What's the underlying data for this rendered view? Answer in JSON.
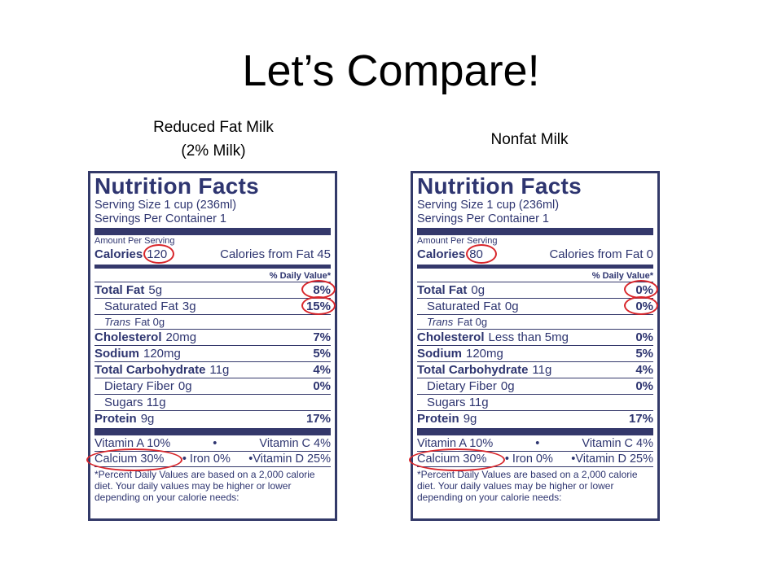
{
  "slide": {
    "title": "Let’s Compare!"
  },
  "captions": {
    "left": [
      "Reduced Fat Milk",
      "(2% Milk)"
    ],
    "right": [
      "Nonfat Milk"
    ]
  },
  "labels": [
    {
      "heading": "Nutrition Facts",
      "serving_size": "Serving Size 1 cup (236ml)",
      "servings_per_container": "Servings Per Container 1",
      "amount_per_serving": "Amount Per Serving",
      "calories_label": "Calories",
      "calories_value": "120",
      "calories_from_fat": "Calories from Fat 45",
      "daily_value_header": "% Daily Value*",
      "total_fat_label": "Total Fat",
      "total_fat_value": "5g",
      "total_fat_pct": "8%",
      "sat_fat_label": "Saturated Fat",
      "sat_fat_value": "3g",
      "sat_fat_pct": "15%",
      "trans_fat_italic": "Trans",
      "trans_fat_rest": "Fat 0g",
      "cholesterol_label": "Cholesterol",
      "cholesterol_value": "20mg",
      "cholesterol_pct": "7%",
      "sodium_label": "Sodium",
      "sodium_value": "120mg",
      "sodium_pct": "5%",
      "carb_label": "Total Carbohydrate",
      "carb_value": "11g",
      "carb_pct": "4%",
      "fiber_label": "Dietary Fiber",
      "fiber_value": "0g",
      "fiber_pct": "0%",
      "sugars": "Sugars 11g",
      "protein_label": "Protein",
      "protein_value": "9g",
      "protein_pct": "17%",
      "vitamin_a": "Vitamin A 10%",
      "bullet": "•",
      "vitamin_c": "Vitamin C 4%",
      "calcium": "Calcium 30%",
      "iron": "• Iron 0%",
      "vitamin_d": "•Vitamin D 25%",
      "footnote": "*Percent Daily Values are based on a 2,000 calorie diet. Your daily values may be higher or lower depending on your calorie needs:"
    },
    {
      "heading": "Nutrition Facts",
      "serving_size": "Serving Size 1 cup (236ml)",
      "servings_per_container": "Servings Per Container 1",
      "amount_per_serving": "Amount Per Serving",
      "calories_label": "Calories",
      "calories_value": "80",
      "calories_from_fat": "Calories from Fat 0",
      "daily_value_header": "% Daily Value*",
      "total_fat_label": "Total Fat",
      "total_fat_value": "0g",
      "total_fat_pct": "0%",
      "sat_fat_label": "Saturated Fat",
      "sat_fat_value": "0g",
      "sat_fat_pct": "0%",
      "trans_fat_italic": "Trans",
      "trans_fat_rest": "Fat 0g",
      "cholesterol_label": "Cholesterol",
      "cholesterol_value": "Less than 5mg",
      "cholesterol_pct": "0%",
      "sodium_label": "Sodium",
      "sodium_value": "120mg",
      "sodium_pct": "5%",
      "carb_label": "Total Carbohydrate",
      "carb_value": "11g",
      "carb_pct": "4%",
      "fiber_label": "Dietary Fiber",
      "fiber_value": "0g",
      "fiber_pct": "0%",
      "sugars": "Sugars 11g",
      "protein_label": "Protein",
      "protein_value": "9g",
      "protein_pct": "17%",
      "vitamin_a": "Vitamin A 10%",
      "bullet": "•",
      "vitamin_c": "Vitamin C 4%",
      "calcium": "Calcium 30%",
      "iron": "• Iron 0%",
      "vitamin_d": "•Vitamin D 25%",
      "footnote": "*Percent Daily Values are based on a 2,000 calorie diet. Your daily values may be higher or lower depending on your calorie needs:"
    }
  ],
  "colors": {
    "label_ink": "#2e3570",
    "highlight_circle": "#d8262b"
  }
}
